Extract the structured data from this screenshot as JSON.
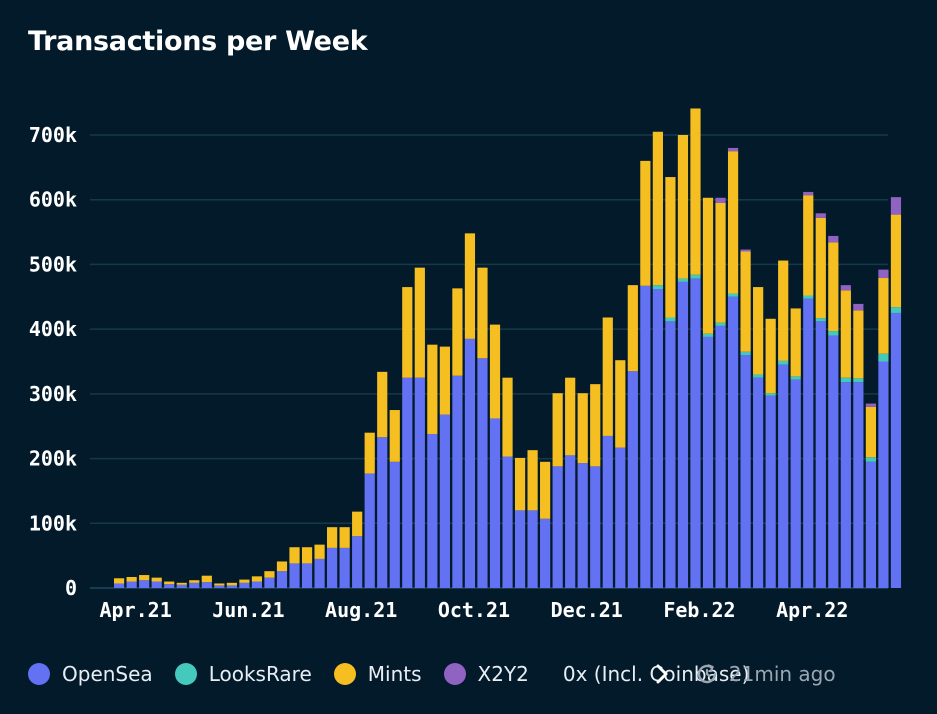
{
  "title": "Transactions per Week",
  "legend": {
    "items": [
      {
        "label": "OpenSea",
        "color": "#6272f2"
      },
      {
        "label": "LooksRare",
        "color": "#45c9bc"
      },
      {
        "label": "Mints",
        "color": "#f5bf22"
      },
      {
        "label": "X2Y2",
        "color": "#9063c2"
      },
      {
        "label": "0x (Incl. Coinbase)",
        "color": "#f59244"
      }
    ],
    "next_icon": "chevron-right-icon"
  },
  "updated": {
    "text": "21min ago",
    "icon": "refresh-clock-icon"
  },
  "chart_data": {
    "type": "bar",
    "stacked": true,
    "title": "Transactions per Week",
    "xlabel": "",
    "ylabel": "",
    "ylim": [
      0,
      740000
    ],
    "y_ticks": [
      {
        "value": 0,
        "label": "0"
      },
      {
        "value": 100000,
        "label": "100k"
      },
      {
        "value": 200000,
        "label": "200k"
      },
      {
        "value": 300000,
        "label": "300k"
      },
      {
        "value": 400000,
        "label": "400k"
      },
      {
        "value": 500000,
        "label": "500k"
      },
      {
        "value": 600000,
        "label": "600k"
      },
      {
        "value": 700000,
        "label": "700k"
      }
    ],
    "x_ticks": [
      {
        "index": 1,
        "label": "Apr.21"
      },
      {
        "index": 10,
        "label": "Jun.21"
      },
      {
        "index": 19,
        "label": "Aug.21"
      },
      {
        "index": 28,
        "label": "Oct.21"
      },
      {
        "index": 37,
        "label": "Dec.21"
      },
      {
        "index": 46,
        "label": "Feb.22"
      },
      {
        "index": 55,
        "label": "Apr.22"
      }
    ],
    "grid": true,
    "legend_position": "bottom",
    "series": [
      {
        "name": "OpenSea",
        "color": "#6272f2",
        "values": [
          7000,
          10000,
          12000,
          10000,
          6000,
          5000,
          8000,
          9000,
          4000,
          4000,
          8000,
          10000,
          16000,
          26000,
          38000,
          38000,
          45000,
          62000,
          62000,
          80000,
          177000,
          233000,
          195000,
          325000,
          325000,
          238000,
          268000,
          328000,
          385000,
          355000,
          262000,
          203000,
          120000,
          120000,
          107000,
          188000,
          205000,
          193000,
          188000,
          235000,
          217000,
          335000,
          467000,
          462000,
          412000,
          473000,
          478000,
          388000,
          405000,
          450000,
          360000,
          325000,
          297000,
          345000,
          322000,
          447000,
          412000,
          390000,
          318000,
          318000,
          195000,
          350000,
          425000
        ]
      },
      {
        "name": "LooksRare",
        "color": "#45c9bc",
        "values": [
          0,
          0,
          0,
          0,
          0,
          0,
          0,
          0,
          0,
          0,
          0,
          0,
          0,
          0,
          0,
          0,
          0,
          0,
          0,
          0,
          0,
          0,
          0,
          0,
          0,
          0,
          0,
          0,
          0,
          0,
          0,
          0,
          0,
          0,
          0,
          0,
          0,
          0,
          0,
          0,
          0,
          0,
          0,
          6000,
          6000,
          5000,
          6000,
          5000,
          5000,
          5000,
          5000,
          5000,
          4000,
          6000,
          5000,
          5000,
          5000,
          7000,
          7000,
          6000,
          7000,
          12000,
          9000
        ]
      },
      {
        "name": "Mints",
        "color": "#f5bf22",
        "values": [
          8000,
          7000,
          8000,
          6000,
          4000,
          3000,
          4000,
          10000,
          3000,
          4000,
          5000,
          8000,
          10000,
          15000,
          25000,
          25000,
          22000,
          32000,
          32000,
          38000,
          63000,
          101000,
          80000,
          140000,
          170000,
          138000,
          105000,
          135000,
          163000,
          140000,
          145000,
          122000,
          81000,
          93000,
          88000,
          113000,
          120000,
          108000,
          127000,
          183000,
          135000,
          133000,
          193000,
          237000,
          217000,
          222000,
          257000,
          210000,
          185000,
          220000,
          155000,
          135000,
          115000,
          155000,
          105000,
          155000,
          155000,
          137000,
          135000,
          105000,
          78000,
          117000,
          143000
        ]
      },
      {
        "name": "X2Y2",
        "color": "#9063c2",
        "values": [
          0,
          0,
          0,
          0,
          0,
          0,
          0,
          0,
          0,
          0,
          0,
          0,
          0,
          0,
          0,
          0,
          0,
          0,
          0,
          0,
          0,
          0,
          0,
          0,
          0,
          0,
          0,
          0,
          0,
          0,
          0,
          0,
          0,
          0,
          0,
          0,
          0,
          0,
          0,
          0,
          0,
          0,
          0,
          0,
          0,
          0,
          0,
          0,
          8000,
          5000,
          3000,
          0,
          0,
          0,
          0,
          5000,
          7000,
          10000,
          8000,
          10000,
          5000,
          13000,
          27000
        ]
      },
      {
        "name": "0x (Incl. Coinbase)",
        "color": "#f59244",
        "values": [
          0,
          0,
          0,
          0,
          0,
          0,
          0,
          0,
          0,
          0,
          0,
          0,
          0,
          0,
          0,
          0,
          0,
          0,
          0,
          0,
          0,
          0,
          0,
          0,
          0,
          0,
          0,
          0,
          0,
          0,
          0,
          0,
          0,
          0,
          0,
          0,
          0,
          0,
          0,
          0,
          0,
          0,
          0,
          0,
          0,
          0,
          0,
          0,
          0,
          0,
          0,
          0,
          0,
          0,
          0,
          0,
          0,
          0,
          0,
          0,
          0,
          0,
          0
        ]
      }
    ]
  }
}
